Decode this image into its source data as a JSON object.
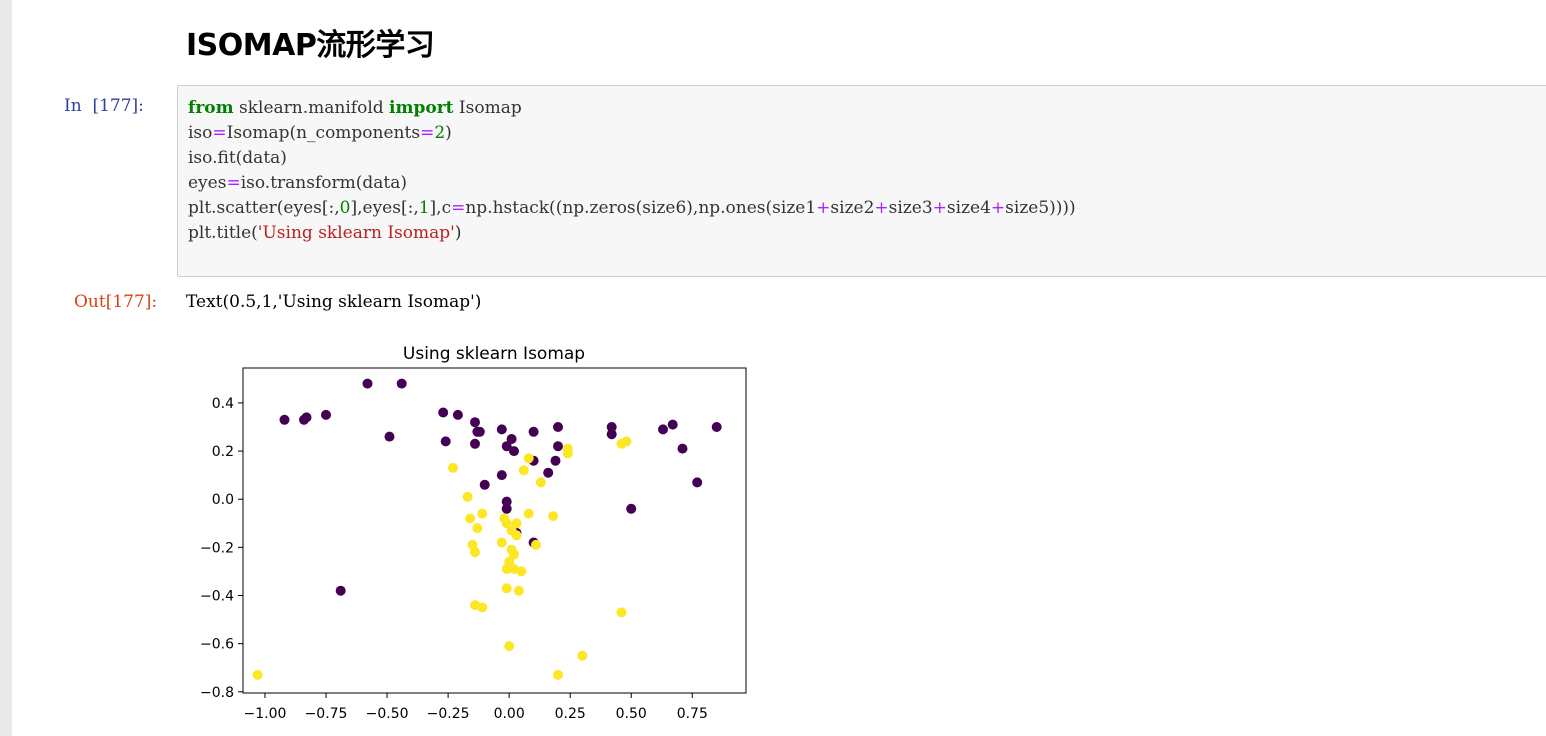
{
  "heading": "ISOMAP流形学习",
  "cell": {
    "in_prompt": "In  [177]:",
    "out_prompt": "Out[177]:",
    "output_text": "Text(0.5,1,'Using sklearn Isomap')",
    "code_lines": [
      [
        {
          "t": "from",
          "c": "kw"
        },
        {
          "t": " sklearn.manifold "
        },
        {
          "t": "import",
          "c": "kw"
        },
        {
          "t": " Isomap"
        }
      ],
      [
        {
          "t": "iso"
        },
        {
          "t": "=",
          "c": "op"
        },
        {
          "t": "Isomap(n_components"
        },
        {
          "t": "=",
          "c": "op"
        },
        {
          "t": "2",
          "c": "num"
        },
        {
          "t": ")"
        }
      ],
      [
        {
          "t": "iso.fit(data)"
        }
      ],
      [
        {
          "t": "eyes"
        },
        {
          "t": "=",
          "c": "op"
        },
        {
          "t": "iso.transform(data)"
        }
      ],
      [
        {
          "t": "plt.scatter(eyes[:,"
        },
        {
          "t": "0",
          "c": "num"
        },
        {
          "t": "],eyes[:,"
        },
        {
          "t": "1",
          "c": "num"
        },
        {
          "t": "],c"
        },
        {
          "t": "=",
          "c": "op"
        },
        {
          "t": "np.hstack((np.zeros(size6),np.ones(size1"
        },
        {
          "t": "+",
          "c": "op"
        },
        {
          "t": "size2"
        },
        {
          "t": "+",
          "c": "op"
        },
        {
          "t": "size3"
        },
        {
          "t": "+",
          "c": "op"
        },
        {
          "t": "size4"
        },
        {
          "t": "+",
          "c": "op"
        },
        {
          "t": "size5))))"
        }
      ],
      [
        {
          "t": "plt.title("
        },
        {
          "t": "'Using sklearn Isomap'",
          "c": "str"
        },
        {
          "t": ")"
        }
      ]
    ]
  },
  "chart_data": {
    "type": "scatter",
    "title": "Using sklearn Isomap",
    "xlim": [
      -1.09,
      0.97
    ],
    "ylim": [
      -0.805,
      0.545
    ],
    "xticks": [
      "−1.00",
      "−0.75",
      "−0.50",
      "−0.25",
      "0.00",
      "0.25",
      "0.50",
      "0.75"
    ],
    "xtick_values": [
      -1.0,
      -0.75,
      -0.5,
      -0.25,
      0.0,
      0.25,
      0.5,
      0.75
    ],
    "yticks": [
      "0.4",
      "0.2",
      "0.0",
      "−0.2",
      "−0.4",
      "−0.6",
      "−0.8"
    ],
    "ytick_values": [
      0.4,
      0.2,
      0.0,
      -0.2,
      -0.4,
      -0.6,
      -0.8
    ],
    "grid": false,
    "colors": {
      "class0": "#440154",
      "class1": "#fde725"
    },
    "series": [
      {
        "values": [
          [
            -0.92,
            0.33
          ],
          [
            -0.84,
            0.33
          ],
          [
            -0.83,
            0.34
          ],
          [
            -0.75,
            0.35
          ],
          [
            -0.58,
            0.48
          ],
          [
            -0.44,
            0.48
          ],
          [
            -0.49,
            0.26
          ],
          [
            -0.27,
            0.36
          ],
          [
            -0.21,
            0.35
          ],
          [
            -0.26,
            0.24
          ],
          [
            -0.14,
            0.32
          ],
          [
            -0.13,
            0.28
          ],
          [
            -0.12,
            0.28
          ],
          [
            -0.14,
            0.23
          ],
          [
            -0.03,
            0.29
          ],
          [
            -0.01,
            0.22
          ],
          [
            0.01,
            0.25
          ],
          [
            0.02,
            0.2
          ],
          [
            0.1,
            0.28
          ],
          [
            0.2,
            0.3
          ],
          [
            0.2,
            0.22
          ],
          [
            0.19,
            0.16
          ],
          [
            0.1,
            0.16
          ],
          [
            0.16,
            0.11
          ],
          [
            -0.03,
            0.1
          ],
          [
            -0.1,
            0.06
          ],
          [
            -0.01,
            -0.01
          ],
          [
            -0.01,
            -0.04
          ],
          [
            0.03,
            -0.14
          ],
          [
            0.1,
            -0.18
          ],
          [
            0.42,
            0.27
          ],
          [
            0.42,
            0.3
          ],
          [
            0.63,
            0.29
          ],
          [
            0.67,
            0.31
          ],
          [
            0.71,
            0.21
          ],
          [
            0.85,
            0.3
          ],
          [
            0.77,
            0.07
          ],
          [
            0.5,
            -0.04
          ],
          [
            -0.69,
            -0.38
          ]
        ]
      },
      {
        "values": [
          [
            -0.23,
            0.13
          ],
          [
            -0.17,
            0.01
          ],
          [
            -0.11,
            -0.06
          ],
          [
            -0.16,
            -0.08
          ],
          [
            -0.13,
            -0.12
          ],
          [
            -0.15,
            -0.19
          ],
          [
            -0.14,
            -0.22
          ],
          [
            -0.02,
            -0.08
          ],
          [
            -0.01,
            -0.1
          ],
          [
            0.01,
            -0.13
          ],
          [
            0.03,
            -0.1
          ],
          [
            0.03,
            -0.15
          ],
          [
            -0.03,
            -0.18
          ],
          [
            0.01,
            -0.21
          ],
          [
            0.02,
            -0.23
          ],
          [
            0.0,
            -0.26
          ],
          [
            -0.01,
            -0.29
          ],
          [
            0.02,
            -0.29
          ],
          [
            0.05,
            -0.3
          ],
          [
            0.11,
            -0.19
          ],
          [
            0.08,
            -0.06
          ],
          [
            0.18,
            -0.07
          ],
          [
            0.13,
            0.07
          ],
          [
            0.06,
            0.12
          ],
          [
            0.08,
            0.17
          ],
          [
            0.24,
            0.19
          ],
          [
            0.24,
            0.21
          ],
          [
            0.46,
            0.23
          ],
          [
            0.48,
            0.24
          ],
          [
            -0.14,
            -0.44
          ],
          [
            -0.11,
            -0.45
          ],
          [
            -0.01,
            -0.37
          ],
          [
            0.04,
            -0.38
          ],
          [
            0.0,
            -0.61
          ],
          [
            0.46,
            -0.47
          ],
          [
            0.3,
            -0.65
          ],
          [
            0.2,
            -0.73
          ],
          [
            -1.03,
            -0.73
          ]
        ]
      }
    ]
  }
}
